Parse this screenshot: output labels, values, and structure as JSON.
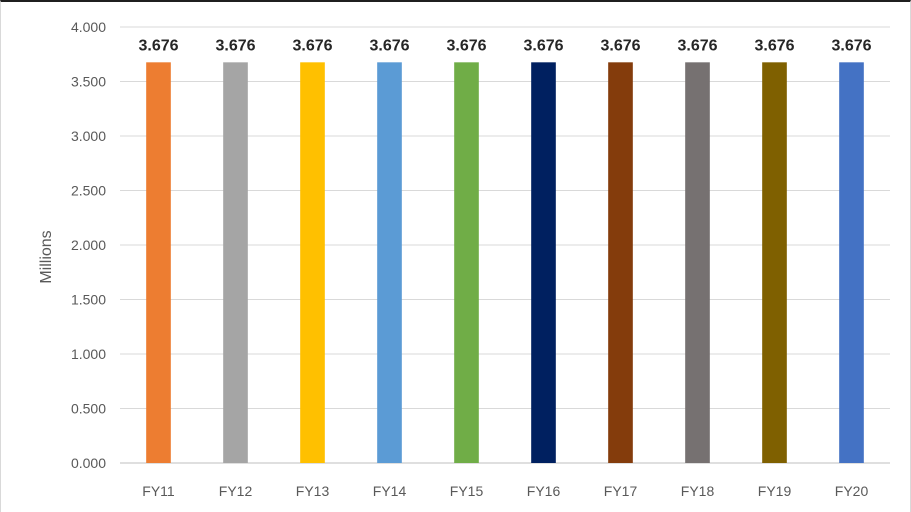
{
  "chart_data": {
    "type": "bar",
    "categories": [
      "FY11",
      "FY12",
      "FY13",
      "FY14",
      "FY15",
      "FY16",
      "FY17",
      "FY18",
      "FY19",
      "FY20"
    ],
    "values": [
      3.676,
      3.676,
      3.676,
      3.676,
      3.676,
      3.676,
      3.676,
      3.676,
      3.676,
      3.676
    ],
    "data_labels": [
      "3.676",
      "3.676",
      "3.676",
      "3.676",
      "3.676",
      "3.676",
      "3.676",
      "3.676",
      "3.676",
      "3.676"
    ],
    "bar_colors": [
      "#ED7D31",
      "#A5A5A5",
      "#FFC000",
      "#5B9BD5",
      "#70AD47",
      "#002060",
      "#843C0C",
      "#767171",
      "#7F6000",
      "#4472C4"
    ],
    "title": "",
    "xlabel": "",
    "ylabel": "Millions",
    "ylim": [
      0,
      4
    ],
    "yticks": [
      0,
      0.5,
      1,
      1.5,
      2,
      2.5,
      3,
      3.5,
      4
    ],
    "ytick_labels": [
      "0.000",
      "0.500",
      "1.000",
      "1.500",
      "2.000",
      "2.500",
      "3.000",
      "3.500",
      "4.000"
    ],
    "grid": true,
    "legend": "none"
  }
}
